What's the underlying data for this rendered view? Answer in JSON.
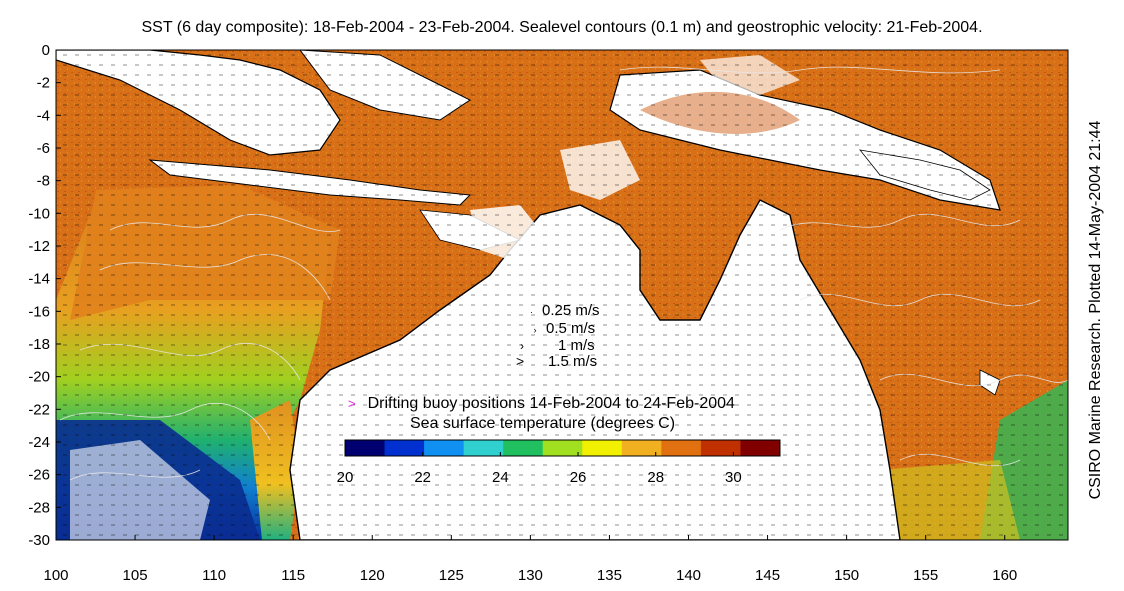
{
  "title": "SST (6 day composite): 18-Feb-2004 - 23-Feb-2004. Sealevel contours (0.1 m) and geostrophic velocity: 21-Feb-2004.",
  "side_credit": "CSIRO Marine Research. Plotted 14-May-2004 21:44",
  "axes": {
    "x_ticks": [
      "100",
      "105",
      "110",
      "115",
      "120",
      "125",
      "130",
      "135",
      "140",
      "145",
      "150",
      "155",
      "160"
    ],
    "y_ticks": [
      "0",
      "-2",
      "-4",
      "-6",
      "-8",
      "-10",
      "-12",
      "-14",
      "-16",
      "-18",
      "-20",
      "-22",
      "-24",
      "-26",
      "-28",
      "-30"
    ],
    "xlim": [
      100,
      164
    ],
    "ylim": [
      -30,
      0
    ]
  },
  "speed_key": {
    "items": [
      "0.25 m/s",
      "0.5 m/s",
      "1 m/s",
      "1.5 m/s"
    ]
  },
  "buoy_legend": {
    "symbol": ">",
    "label": "Drifting buoy positions 14-Feb-2004 to 24-Feb-2004",
    "color": "#e020e0"
  },
  "colorbar": {
    "title": "Sea surface temperature (degrees C)",
    "ticks": [
      "20",
      "22",
      "24",
      "26",
      "28",
      "30"
    ],
    "range": [
      20,
      31.2
    ],
    "colors": [
      "#000070",
      "#0030d0",
      "#1090f0",
      "#30d0d0",
      "#20c060",
      "#a0e020",
      "#f0f000",
      "#f0b020",
      "#e07010",
      "#c03000",
      "#800000"
    ]
  },
  "colors": {
    "land": "#ffffff",
    "coast": "#000000",
    "contour": "#e8e8e8",
    "warm": "#d8701c",
    "cool_green": "#30b060",
    "cool_blue": "#1050d0"
  }
}
